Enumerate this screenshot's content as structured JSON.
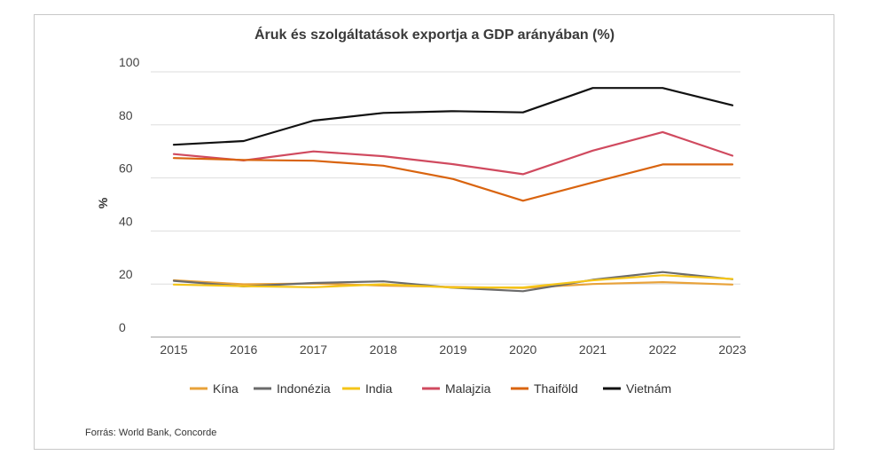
{
  "chart_data": {
    "type": "line",
    "title": "Áruk és szolgáltatások exportja a GDP arányában (%)",
    "xlabel": "",
    "ylabel": "%",
    "x": [
      "2015",
      "2016",
      "2017",
      "2018",
      "2019",
      "2020",
      "2021",
      "2022",
      "2023"
    ],
    "yticks": [
      "0",
      "20",
      "40",
      "60",
      "80",
      "100"
    ],
    "ylim": [
      0,
      100
    ],
    "grid": "horizontal",
    "legend_position": "bottom",
    "series": [
      {
        "name": "Kína",
        "color": "#e8a23a",
        "values": [
          21.4,
          19.9,
          20.2,
          19.4,
          18.9,
          18.5,
          20.0,
          20.7,
          19.8
        ]
      },
      {
        "name": "Indonézia",
        "color": "#6b6b6b",
        "values": [
          21.2,
          19.1,
          20.4,
          21.0,
          18.6,
          17.3,
          21.6,
          24.5,
          21.8
        ]
      },
      {
        "name": "India",
        "color": "#f5c518",
        "values": [
          19.8,
          19.2,
          18.8,
          19.9,
          18.7,
          18.7,
          21.4,
          23.3,
          21.9
        ]
      },
      {
        "name": "Malajzia",
        "color": "#d04a5f",
        "values": [
          69.0,
          66.6,
          70.0,
          68.2,
          65.2,
          61.4,
          70.3,
          77.3,
          68.4
        ]
      },
      {
        "name": "Thaiföld",
        "color": "#d9640f",
        "values": [
          67.5,
          66.8,
          66.5,
          64.6,
          59.6,
          51.4,
          58.3,
          65.1,
          65.1
        ]
      },
      {
        "name": "Vietnám",
        "color": "#111111",
        "values": [
          72.5,
          73.9,
          81.6,
          84.5,
          85.2,
          84.7,
          93.9,
          93.9,
          87.4
        ]
      }
    ]
  },
  "source": "Forrás: World Bank, Concorde"
}
